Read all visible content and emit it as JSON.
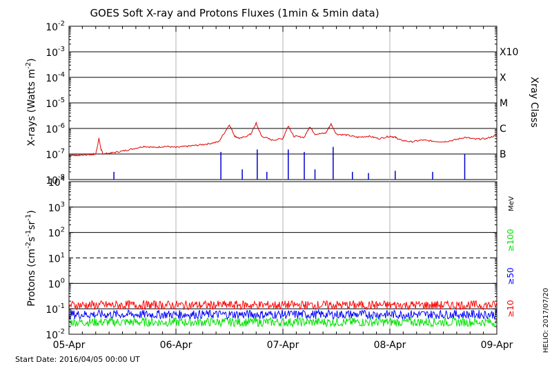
{
  "title": "GOES Soft X-ray and Protons Fluxes   (1min & 5min data)",
  "start_date_label": "Start Date: 2016/04/05 00:00 UT",
  "credit": "HELIO: 2017/07/20",
  "colors": {
    "xray": "#e00000",
    "xray_short": "#0000cc",
    "p10": "#ff0000",
    "p50": "#0000ff",
    "p100": "#00e000",
    "grid": "#000000",
    "day_line": "#b0b0b0"
  },
  "chart_data": [
    {
      "type": "line",
      "panel": "xray",
      "ylabel_main": "X-rays (Watts m",
      "ylabel_sup": "-2",
      "ylabel_end": ")",
      "yscale": "log",
      "ylim": [
        1e-08,
        0.01
      ],
      "ytick_exponents": [
        -8,
        -7,
        -6,
        -5,
        -4,
        -3,
        -2
      ],
      "right_axis_label": "Xray Class",
      "xray_classes": [
        {
          "label": "B",
          "exp": -7
        },
        {
          "label": "C",
          "exp": -6
        },
        {
          "label": "M",
          "exp": -5
        },
        {
          "label": "X",
          "exp": -4
        },
        {
          "label": "X10",
          "exp": -3
        }
      ],
      "series": [
        {
          "color": "#e00000",
          "x": [
            0,
            0.05,
            0.1,
            0.2,
            0.25,
            0.28,
            0.3,
            0.32,
            0.4,
            0.5,
            0.6,
            0.7,
            0.8,
            0.9,
            1.0,
            1.1,
            1.2,
            1.3,
            1.4,
            1.5,
            1.55,
            1.6,
            1.7,
            1.75,
            1.8,
            1.9,
            2.0,
            2.05,
            2.1,
            2.2,
            2.25,
            2.3,
            2.4,
            2.45,
            2.5,
            2.6,
            2.7,
            2.8,
            2.9,
            3.0,
            3.05,
            3.1,
            3.2,
            3.3,
            3.4,
            3.5,
            3.6,
            3.7,
            3.8,
            3.9,
            4.0
          ],
          "y": [
            9e-08,
            9e-08,
            9e-08,
            9.5e-08,
            1e-07,
            4e-07,
            1.5e-07,
            1e-07,
            1.1e-07,
            1.3e-07,
            1.6e-07,
            2e-07,
            1.8e-07,
            2e-07,
            1.8e-07,
            2e-07,
            2.2e-07,
            2.5e-07,
            3e-07,
            1.4e-06,
            5e-07,
            4e-07,
            6e-07,
            1.6e-06,
            5e-07,
            3.5e-07,
            4e-07,
            1.3e-06,
            5e-07,
            4.5e-07,
            1.2e-06,
            6e-07,
            6.5e-07,
            1.5e-06,
            6e-07,
            5.5e-07,
            4.5e-07,
            5e-07,
            4e-07,
            5e-07,
            4.5e-07,
            3.5e-07,
            3e-07,
            3.5e-07,
            3.2e-07,
            3e-07,
            3.5e-07,
            4.5e-07,
            3.8e-07,
            4e-07,
            5.5e-07
          ]
        },
        {
          "color": "#0000cc",
          "x": [
            0.42,
            1.42,
            1.62,
            1.76,
            1.85,
            2.05,
            2.2,
            2.3,
            2.47,
            2.65,
            2.8,
            3.05,
            3.4,
            3.7
          ],
          "y": [
            2e-08,
            1.2e-07,
            2.5e-08,
            1.5e-07,
            2e-08,
            1.5e-07,
            1.2e-07,
            2.5e-08,
            1.9e-07,
            2e-08,
            1.8e-08,
            2.2e-08,
            2e-08,
            1e-07
          ]
        }
      ]
    },
    {
      "type": "line",
      "panel": "protons",
      "ylabel_main": "Protons (cm",
      "ylabel_sups": [
        "-2",
        "-1",
        "-1"
      ],
      "yscale": "log",
      "ylim": [
        0.01,
        10000
      ],
      "ytick_labels": [
        "10",
        "10",
        "10",
        "10",
        "10",
        "10",
        "10"
      ],
      "ytick_sups": [
        "-2",
        "-1",
        "0",
        "1",
        "2",
        "3",
        "4"
      ],
      "ytick_exps": [
        -2,
        -1,
        0,
        1,
        2,
        3,
        4
      ],
      "threshold_exp": 1,
      "legend_unit": "MeV",
      "series": [
        {
          "name": "≥100",
          "color": "#00e000",
          "typical": 0.03
        },
        {
          "name": "≥50",
          "color": "#0000ff",
          "typical": 0.06
        },
        {
          "name": "≥10",
          "color": "#ff0000",
          "typical": 0.14
        }
      ]
    }
  ],
  "x_axis": {
    "tick_labels": [
      "05-Apr",
      "06-Apr",
      "07-Apr",
      "08-Apr",
      "09-Apr"
    ],
    "range_days": [
      0,
      4
    ]
  }
}
